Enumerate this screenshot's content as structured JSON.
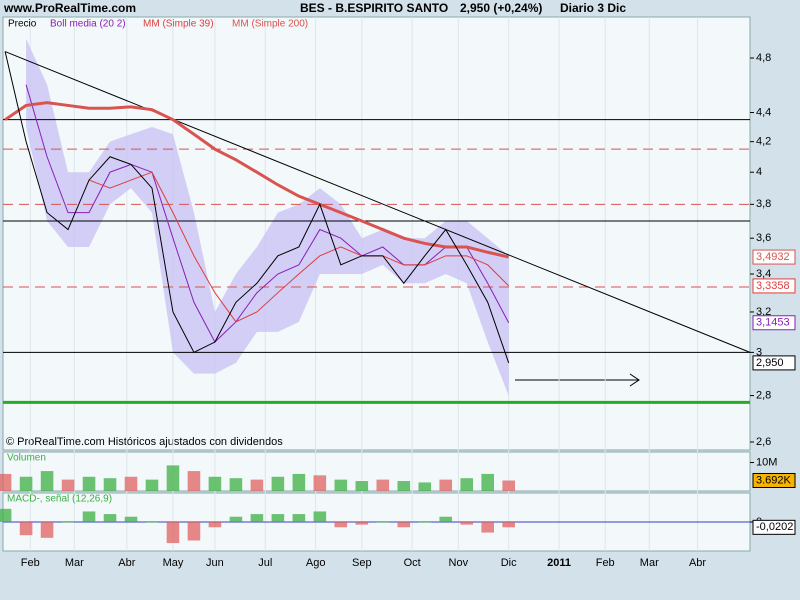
{
  "site": "www.ProRealTime.com",
  "header": {
    "title": "BES - B.ESPIRITO SANTO",
    "quote": "2,950 (+0,24%)",
    "period": "Diario  3 Dic"
  },
  "footer": "© ProRealTime.com Históricos ajustados con dividendos",
  "chart_data": [
    {
      "type": "line",
      "log": true,
      "legend_title": "Precio",
      "x": [
        0,
        10,
        20,
        30,
        40,
        50,
        60,
        70,
        80,
        90,
        100,
        110,
        120,
        130,
        140,
        150,
        160,
        170,
        180,
        190,
        200,
        210,
        220,
        230,
        240
      ],
      "xlim": [
        -1,
        355
      ],
      "xticks": [
        {
          "value": 12,
          "label": "Feb"
        },
        {
          "value": 33,
          "label": "Mar"
        },
        {
          "value": 58,
          "label": "Abr"
        },
        {
          "value": 80,
          "label": "May"
        },
        {
          "value": 100,
          "label": "Jun"
        },
        {
          "value": 124,
          "label": "Jul"
        },
        {
          "value": 148,
          "label": "Ago"
        },
        {
          "value": 170,
          "label": "Sep"
        },
        {
          "value": 194,
          "label": "Oct"
        },
        {
          "value": 216,
          "label": "Nov"
        },
        {
          "value": 240,
          "label": "Dic"
        },
        {
          "value": 264,
          "label": "2011"
        },
        {
          "value": 286,
          "label": "Feb"
        },
        {
          "value": 307,
          "label": "Mar"
        },
        {
          "value": 330,
          "label": "Abr"
        }
      ],
      "ylim": [
        2.567,
        5.125
      ],
      "yticks": [
        {
          "value": 2.6,
          "label": "2,6"
        },
        {
          "value": 2.8,
          "label": "2,8"
        },
        3,
        {
          "value": 3.2,
          "label": "3,2"
        },
        {
          "value": 3.4,
          "label": "3,4"
        },
        {
          "value": 3.6,
          "label": "3,6"
        },
        {
          "value": 3.8,
          "label": "3,8"
        },
        4,
        {
          "value": 4.2,
          "label": "4,2"
        },
        {
          "value": 4.4,
          "label": "4,4"
        },
        {
          "value": 4.8,
          "label": "4,8"
        }
      ],
      "bollinger": {
        "color": "#c9c3f5",
        "upper": [
          null,
          4.95,
          4.6,
          4.0,
          4.0,
          4.2,
          4.25,
          4.3,
          4.25,
          3.75,
          3.2,
          3.4,
          3.55,
          3.75,
          3.8,
          3.9,
          3.8,
          3.6,
          3.65,
          3.6,
          3.6,
          3.7,
          3.7,
          3.6,
          3.5
        ],
        "lower": [
          null,
          4.3,
          3.7,
          3.55,
          3.55,
          3.8,
          3.9,
          3.75,
          3.0,
          2.9,
          2.9,
          2.95,
          3.1,
          3.1,
          3.15,
          3.4,
          3.4,
          3.4,
          3.45,
          3.35,
          3.35,
          3.4,
          3.35,
          3.05,
          2.8
        ]
      },
      "series": [
        {
          "name": "Boll media (20 2)",
          "color": "#8a1fb5",
          "width": 1,
          "last_label": "3,1453",
          "values": [
            null,
            4.6,
            4.1,
            3.75,
            3.75,
            4.0,
            4.05,
            4.0,
            3.6,
            3.25,
            3.05,
            3.15,
            3.3,
            3.4,
            3.45,
            3.65,
            3.6,
            3.5,
            3.55,
            3.45,
            3.45,
            3.55,
            3.55,
            3.35,
            3.1453
          ]
        },
        {
          "name": "MM (Simple 39)",
          "color": "#e03c3c",
          "width": 1,
          "last_label": "3,3358",
          "values": [
            null,
            null,
            null,
            null,
            3.95,
            3.9,
            3.95,
            4.0,
            3.75,
            3.5,
            3.3,
            3.15,
            3.2,
            3.3,
            3.4,
            3.5,
            3.55,
            3.5,
            3.5,
            3.45,
            3.45,
            3.5,
            3.5,
            3.45,
            3.3358
          ]
        },
        {
          "name": "MM (Simple 200)",
          "color": "#d9534f",
          "width": 3,
          "last_label": "3,4932",
          "values": [
            4.35,
            4.45,
            4.47,
            4.45,
            4.43,
            4.43,
            4.44,
            4.42,
            4.35,
            4.25,
            4.15,
            4.08,
            4.0,
            3.92,
            3.85,
            3.8,
            3.75,
            3.7,
            3.65,
            3.6,
            3.57,
            3.55,
            3.55,
            3.52,
            3.4932
          ]
        },
        {
          "name": "Precio",
          "color": "#000000",
          "width": 1,
          "last_label": "2,950",
          "values": [
            4.85,
            4.2,
            3.75,
            3.65,
            3.95,
            4.1,
            4.05,
            3.9,
            3.2,
            3.0,
            3.05,
            3.25,
            3.35,
            3.5,
            3.55,
            3.8,
            3.45,
            3.5,
            3.5,
            3.35,
            3.5,
            3.65,
            3.45,
            3.25,
            2.95
          ]
        }
      ],
      "levels": [
        {
          "value": 4.35,
          "color": "#000000",
          "dash": false,
          "width": 1
        },
        {
          "value": 4.15,
          "color": "#d9534f",
          "dash": true,
          "width": 1
        },
        {
          "value": 3.8,
          "color": "#d9534f",
          "dash": true,
          "width": 1
        },
        {
          "value": 3.7,
          "color": "#000000",
          "dash": false,
          "width": 1
        },
        {
          "value": 3.33,
          "color": "#d9534f",
          "dash": true,
          "width": 1
        },
        {
          "value": 3.0,
          "color": "#000000",
          "dash": false,
          "width": 1
        },
        {
          "value": 2.77,
          "color": "#22b022",
          "dash": false,
          "width": 3
        }
      ],
      "trendline": {
        "x": [
          0,
          355
        ],
        "y": [
          4.85,
          3.0
        ]
      }
    },
    {
      "type": "bar",
      "title": "Volumen",
      "last_label": "3.692K",
      "x": [
        0,
        10,
        20,
        30,
        40,
        50,
        60,
        70,
        80,
        90,
        100,
        110,
        120,
        130,
        140,
        150,
        160,
        170,
        180,
        190,
        200,
        210,
        220,
        230,
        240
      ],
      "ylim": [
        0,
        13700
      ],
      "yticks": [
        {
          "value": 10000,
          "label": "10M"
        }
      ],
      "up_color": "#3cb043",
      "down_color": "#e06060",
      "values": [
        6000,
        5000,
        7000,
        4000,
        5000,
        4500,
        5000,
        4000,
        9000,
        7000,
        5000,
        4500,
        4000,
        5000,
        6000,
        5500,
        4000,
        3500,
        4000,
        3500,
        3000,
        4000,
        4500,
        6000,
        3692
      ]
    },
    {
      "type": "bar",
      "title": "MACD-, señal (12,26,9)",
      "last_label": "-0,0202",
      "x": [
        0,
        10,
        20,
        30,
        40,
        50,
        60,
        70,
        80,
        90,
        100,
        110,
        120,
        130,
        140,
        150,
        160,
        170,
        180,
        190,
        200,
        210,
        220,
        230,
        240
      ],
      "ylim": [
        -0.11,
        0.11
      ],
      "yticks": [
        0
      ],
      "up_color": "#3cb043",
      "down_color": "#e06060",
      "zero_color": "#3040c0",
      "values": [
        0.05,
        -0.05,
        -0.06,
        0.0,
        0.04,
        0.03,
        0.02,
        0.0,
        -0.08,
        -0.07,
        -0.02,
        0.02,
        0.03,
        0.03,
        0.03,
        0.04,
        -0.02,
        -0.01,
        0.0,
        -0.02,
        0.0,
        0.02,
        -0.01,
        -0.04,
        -0.0202
      ]
    }
  ]
}
